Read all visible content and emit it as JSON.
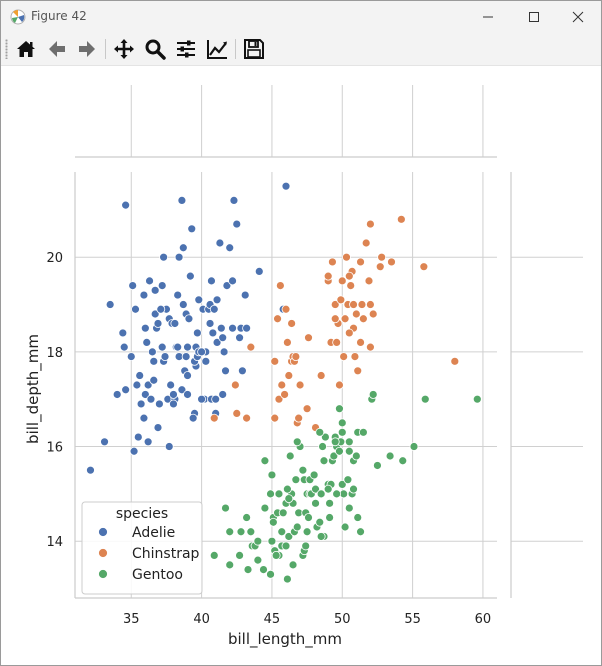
{
  "window": {
    "title": "Figure 42"
  },
  "toolbar": {
    "tools": [
      "home-icon",
      "back-arrow-icon",
      "forward-arrow-icon",
      "pan-icon",
      "zoom-icon",
      "configure-subplots-icon",
      "edit-axis-icon",
      "save-icon"
    ]
  },
  "colors": {
    "Adelie": "#4c72b0",
    "Chinstrap": "#dd8452",
    "Gentoo": "#55a868",
    "grid": "#d0d0d0"
  },
  "chart_data": {
    "type": "scatter",
    "xlabel": "bill_length_mm",
    "ylabel": "bill_depth_mm",
    "xlim": [
      31,
      61
    ],
    "ylim": [
      12.8,
      21.8
    ],
    "xticks": [
      "35",
      "40",
      "45",
      "50",
      "55",
      "60"
    ],
    "yticks": [
      "14",
      "16",
      "18",
      "20"
    ],
    "grid": true,
    "legend": {
      "title": "species",
      "placement": "lower-left",
      "entries": [
        "Adelie",
        "Chinstrap",
        "Gentoo"
      ]
    },
    "series": [
      {
        "name": "Adelie",
        "points": [
          [
            32.1,
            15.5
          ],
          [
            33.1,
            16.1
          ],
          [
            33.5,
            19.0
          ],
          [
            34.0,
            17.1
          ],
          [
            34.4,
            18.4
          ],
          [
            34.5,
            18.1
          ],
          [
            34.6,
            17.2
          ],
          [
            34.6,
            21.1
          ],
          [
            35.0,
            17.9
          ],
          [
            35.1,
            19.4
          ],
          [
            35.3,
            18.9
          ],
          [
            35.5,
            16.2
          ],
          [
            35.6,
            17.5
          ],
          [
            35.7,
            16.9
          ],
          [
            35.9,
            19.2
          ],
          [
            35.9,
            16.6
          ],
          [
            36.0,
            17.1
          ],
          [
            36.0,
            18.5
          ],
          [
            36.2,
            16.1
          ],
          [
            36.2,
            17.3
          ],
          [
            36.4,
            17.0
          ],
          [
            36.5,
            18.0
          ],
          [
            36.6,
            17.8
          ],
          [
            36.7,
            18.8
          ],
          [
            36.7,
            19.3
          ],
          [
            36.8,
            18.5
          ],
          [
            36.9,
            18.6
          ],
          [
            37.0,
            16.9
          ],
          [
            37.2,
            18.1
          ],
          [
            37.3,
            17.8
          ],
          [
            37.5,
            18.9
          ],
          [
            37.6,
            17.0
          ],
          [
            37.7,
            18.7
          ],
          [
            37.8,
            17.3
          ],
          [
            37.9,
            18.6
          ],
          [
            38.1,
            17.0
          ],
          [
            38.2,
            18.1
          ],
          [
            38.3,
            19.2
          ],
          [
            38.5,
            17.9
          ],
          [
            38.6,
            21.2
          ],
          [
            38.6,
            17.2
          ],
          [
            38.7,
            19.0
          ],
          [
            38.8,
            17.6
          ],
          [
            38.9,
            18.8
          ],
          [
            39.0,
            17.5
          ],
          [
            39.1,
            18.7
          ],
          [
            39.2,
            19.6
          ],
          [
            39.3,
            20.6
          ],
          [
            39.5,
            16.7
          ],
          [
            39.6,
            17.7
          ],
          [
            39.7,
            18.4
          ],
          [
            39.8,
            19.1
          ],
          [
            40.1,
            18.9
          ],
          [
            40.2,
            17.0
          ],
          [
            40.3,
            18.0
          ],
          [
            40.5,
            18.9
          ],
          [
            40.6,
            18.6
          ],
          [
            40.7,
            17.0
          ],
          [
            40.8,
            18.4
          ],
          [
            40.9,
            16.6
          ],
          [
            41.1,
            19.1
          ],
          [
            41.1,
            18.2
          ],
          [
            41.3,
            20.3
          ],
          [
            41.4,
            18.5
          ],
          [
            41.5,
            18.3
          ],
          [
            41.6,
            18.0
          ],
          [
            41.8,
            19.4
          ],
          [
            42.0,
            20.2
          ],
          [
            42.2,
            18.5
          ],
          [
            42.3,
            21.2
          ],
          [
            42.5,
            20.7
          ],
          [
            42.7,
            18.3
          ],
          [
            42.8,
            18.5
          ],
          [
            43.2,
            18.5
          ],
          [
            44.1,
            19.7
          ],
          [
            45.8,
            18.9
          ],
          [
            46.0,
            21.5
          ],
          [
            36.3,
            19.5
          ],
          [
            37.7,
            16.0
          ],
          [
            38.0,
            17.1
          ],
          [
            39.0,
            17.1
          ],
          [
            39.6,
            18.1
          ],
          [
            40.0,
            17.0
          ],
          [
            40.6,
            19.0
          ],
          [
            41.0,
            17.0
          ],
          [
            35.2,
            15.9
          ],
          [
            36.1,
            18.2
          ],
          [
            37.1,
            18.9
          ],
          [
            38.4,
            17.9
          ],
          [
            39.5,
            17.8
          ],
          [
            40.3,
            17.8
          ],
          [
            41.5,
            17.1
          ],
          [
            42.2,
            19.5
          ],
          [
            43.1,
            19.2
          ],
          [
            37.4,
            17.9
          ],
          [
            38.1,
            18.6
          ],
          [
            38.9,
            17.9
          ],
          [
            39.7,
            17.9
          ],
          [
            40.9,
            18.9
          ],
          [
            41.7,
            17.6
          ],
          [
            36.9,
            16.4
          ],
          [
            38.0,
            16.9
          ],
          [
            39.4,
            16.6
          ],
          [
            36.6,
            17.4
          ],
          [
            35.4,
            17.3
          ],
          [
            38.7,
            20.2
          ],
          [
            40.7,
            19.5
          ],
          [
            38.4,
            20.0
          ],
          [
            37.3,
            20.0
          ],
          [
            42.9,
            17.6
          ],
          [
            41.0,
            16.7
          ],
          [
            39.8,
            18.0
          ],
          [
            37.2,
            19.4
          ],
          [
            40.0,
            18.0
          ],
          [
            38.3,
            18.1
          ],
          [
            39.0,
            18.1
          ]
        ]
      },
      {
        "name": "Chinstrap",
        "points": [
          [
            40.9,
            16.6
          ],
          [
            42.4,
            17.3
          ],
          [
            42.5,
            16.7
          ],
          [
            43.2,
            16.6
          ],
          [
            43.5,
            18.1
          ],
          [
            45.2,
            17.8
          ],
          [
            45.2,
            16.6
          ],
          [
            45.4,
            18.7
          ],
          [
            45.5,
            17.0
          ],
          [
            45.6,
            19.4
          ],
          [
            45.7,
            17.3
          ],
          [
            45.9,
            17.1
          ],
          [
            46.0,
            18.9
          ],
          [
            46.1,
            18.2
          ],
          [
            46.2,
            17.5
          ],
          [
            46.4,
            17.8
          ],
          [
            46.5,
            17.9
          ],
          [
            46.6,
            17.8
          ],
          [
            46.7,
            17.9
          ],
          [
            46.8,
            16.5
          ],
          [
            46.9,
            16.6
          ],
          [
            47.0,
            17.3
          ],
          [
            47.5,
            16.8
          ],
          [
            47.6,
            18.3
          ],
          [
            48.1,
            16.4
          ],
          [
            48.5,
            17.5
          ],
          [
            49.0,
            19.5
          ],
          [
            49.2,
            18.2
          ],
          [
            49.3,
            19.9
          ],
          [
            49.5,
            19.0
          ],
          [
            49.6,
            18.2
          ],
          [
            49.7,
            18.6
          ],
          [
            49.8,
            17.3
          ],
          [
            49.9,
            19.1
          ],
          [
            50.0,
            19.5
          ],
          [
            50.1,
            17.9
          ],
          [
            50.2,
            18.7
          ],
          [
            50.3,
            20.0
          ],
          [
            50.4,
            19.0
          ],
          [
            50.5,
            18.4
          ],
          [
            50.6,
            19.4
          ],
          [
            50.7,
            19.7
          ],
          [
            50.8,
            18.5
          ],
          [
            50.9,
            17.9
          ],
          [
            51.0,
            18.8
          ],
          [
            51.3,
            19.9
          ],
          [
            51.4,
            19.0
          ],
          [
            51.5,
            18.7
          ],
          [
            51.7,
            20.3
          ],
          [
            51.9,
            19.5
          ],
          [
            52.0,
            20.7
          ],
          [
            52.2,
            18.8
          ],
          [
            52.7,
            19.8
          ],
          [
            52.8,
            20.0
          ],
          [
            53.5,
            19.9
          ],
          [
            54.2,
            20.8
          ],
          [
            55.8,
            19.8
          ],
          [
            58.0,
            17.8
          ],
          [
            46.4,
            18.6
          ],
          [
            47.0,
            17.3
          ],
          [
            49.0,
            19.6
          ],
          [
            50.5,
            18.4
          ],
          [
            51.3,
            18.2
          ],
          [
            52.0,
            19.0
          ],
          [
            50.8,
            19.0
          ],
          [
            49.5,
            18.7
          ],
          [
            52.0,
            18.1
          ],
          [
            50.5,
            19.6
          ],
          [
            51.1,
            17.6
          ],
          [
            45.6,
            19.4
          ]
        ]
      },
      {
        "name": "Gentoo",
        "points": [
          [
            40.9,
            13.7
          ],
          [
            41.7,
            14.7
          ],
          [
            42.0,
            13.5
          ],
          [
            42.7,
            13.7
          ],
          [
            42.8,
            14.2
          ],
          [
            43.2,
            14.5
          ],
          [
            43.3,
            13.4
          ],
          [
            43.5,
            14.2
          ],
          [
            43.6,
            13.9
          ],
          [
            44.0,
            13.6
          ],
          [
            44.4,
            13.4
          ],
          [
            44.5,
            14.7
          ],
          [
            44.9,
            13.3
          ],
          [
            45.0,
            15.4
          ],
          [
            45.1,
            14.5
          ],
          [
            45.2,
            13.8
          ],
          [
            45.3,
            13.7
          ],
          [
            45.4,
            14.6
          ],
          [
            45.5,
            13.7
          ],
          [
            45.5,
            15.0
          ],
          [
            45.7,
            13.9
          ],
          [
            45.8,
            14.6
          ],
          [
            46.1,
            13.2
          ],
          [
            46.2,
            14.1
          ],
          [
            46.3,
            15.8
          ],
          [
            46.4,
            15.0
          ],
          [
            46.5,
            13.5
          ],
          [
            46.6,
            14.2
          ],
          [
            46.8,
            14.3
          ],
          [
            46.9,
            14.6
          ],
          [
            47.0,
            16.0
          ],
          [
            47.2,
            13.7
          ],
          [
            47.3,
            15.3
          ],
          [
            47.4,
            14.6
          ],
          [
            47.5,
            15.0
          ],
          [
            47.6,
            14.5
          ],
          [
            47.7,
            15.0
          ],
          [
            47.8,
            15.0
          ],
          [
            48.1,
            15.1
          ],
          [
            48.2,
            14.3
          ],
          [
            48.4,
            14.4
          ],
          [
            48.5,
            15.0
          ],
          [
            48.6,
            16.0
          ],
          [
            48.7,
            14.1
          ],
          [
            48.8,
            16.2
          ],
          [
            49.0,
            15.2
          ],
          [
            49.1,
            14.5
          ],
          [
            49.2,
            15.2
          ],
          [
            49.3,
            15.7
          ],
          [
            49.4,
            15.8
          ],
          [
            49.5,
            16.2
          ],
          [
            49.6,
            16.0
          ],
          [
            49.8,
            16.8
          ],
          [
            49.9,
            16.1
          ],
          [
            50.0,
            15.2
          ],
          [
            50.1,
            15.0
          ],
          [
            50.2,
            14.3
          ],
          [
            50.4,
            15.3
          ],
          [
            50.5,
            15.9
          ],
          [
            50.7,
            15.0
          ],
          [
            50.8,
            15.7
          ],
          [
            51.1,
            16.3
          ],
          [
            51.3,
            14.2
          ],
          [
            51.5,
            16.3
          ],
          [
            52.1,
            17.0
          ],
          [
            52.2,
            17.1
          ],
          [
            52.5,
            15.6
          ],
          [
            53.4,
            15.8
          ],
          [
            54.3,
            15.7
          ],
          [
            55.1,
            16.0
          ],
          [
            55.9,
            17.0
          ],
          [
            59.6,
            17.0
          ],
          [
            46.8,
            16.1
          ],
          [
            48.4,
            16.3
          ],
          [
            50.0,
            16.3
          ],
          [
            51.1,
            14.5
          ],
          [
            49.5,
            16.1
          ],
          [
            47.5,
            14.2
          ],
          [
            45.1,
            14.4
          ],
          [
            46.0,
            14.8
          ],
          [
            44.5,
            15.7
          ],
          [
            43.8,
            13.9
          ],
          [
            46.5,
            14.8
          ],
          [
            48.1,
            14.8
          ],
          [
            49.6,
            15.0
          ],
          [
            50.5,
            16.1
          ],
          [
            45.3,
            13.7
          ],
          [
            46.7,
            15.3
          ],
          [
            47.3,
            13.8
          ],
          [
            48.7,
            15.7
          ],
          [
            49.1,
            14.8
          ],
          [
            50.0,
            16.5
          ],
          [
            47.2,
            15.5
          ],
          [
            45.7,
            14.2
          ],
          [
            44.9,
            15.0
          ],
          [
            42.0,
            14.2
          ],
          [
            46.2,
            14.9
          ],
          [
            47.7,
            15.3
          ],
          [
            48.5,
            14.1
          ],
          [
            50.5,
            14.7
          ],
          [
            49.8,
            15.9
          ],
          [
            51.0,
            15.8
          ],
          [
            47.4,
            13.9
          ],
          [
            46.1,
            15.1
          ],
          [
            45.0,
            14.0
          ],
          [
            48.0,
            15.4
          ],
          [
            49.0,
            15.1
          ],
          [
            50.8,
            15.1
          ],
          [
            46.0,
            13.9
          ],
          [
            44.0,
            14.0
          ]
        ]
      }
    ]
  }
}
